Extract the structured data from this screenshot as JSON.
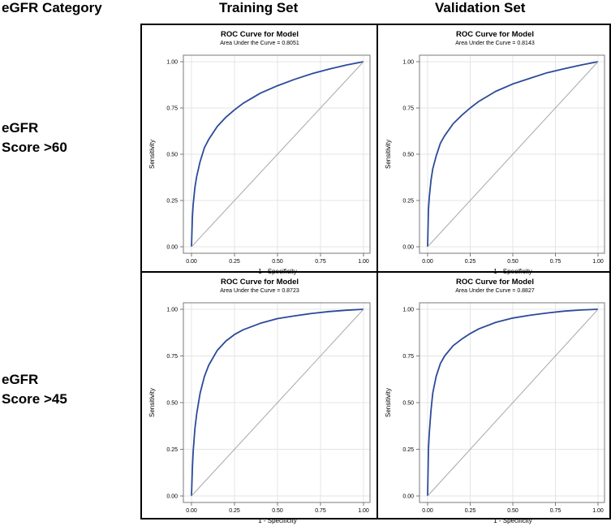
{
  "headers": {
    "category": "eGFR Category",
    "training": "Training Set",
    "validation": "Validation Set"
  },
  "rows": [
    {
      "line1": "eGFR",
      "line2": "Score >60"
    },
    {
      "line1": "eGFR",
      "line2": "Score >45"
    }
  ],
  "colors": {
    "curve": "#2b4a9a",
    "diagonal": "#a8a8a8",
    "grid": "#e4e4e4",
    "frame": "#7a7a7a"
  },
  "chart_data": [
    {
      "type": "line",
      "panel": "training-egfr-60",
      "title": "ROC Curve for Model",
      "subtitle": "Area Under the Curve = 0.8051",
      "xlabel": "1 - Specificity",
      "ylabel": "Sensitivity",
      "xlim": [
        0,
        1
      ],
      "ylim": [
        0,
        1
      ],
      "xticks": [
        "0.00",
        "0.25",
        "0.50",
        "0.75",
        "1.00"
      ],
      "yticks": [
        "0.00",
        "0.25",
        "0.50",
        "0.75",
        "1.00"
      ],
      "grid": true,
      "series": [
        {
          "name": "ROC",
          "x": [
            0,
            0.005,
            0.01,
            0.02,
            0.03,
            0.05,
            0.075,
            0.1,
            0.15,
            0.2,
            0.25,
            0.3,
            0.4,
            0.5,
            0.6,
            0.7,
            0.8,
            0.9,
            1.0
          ],
          "y": [
            0,
            0.16,
            0.23,
            0.32,
            0.38,
            0.46,
            0.535,
            0.58,
            0.65,
            0.7,
            0.74,
            0.775,
            0.83,
            0.87,
            0.905,
            0.935,
            0.96,
            0.982,
            1.0
          ]
        },
        {
          "name": "Reference",
          "x": [
            0,
            1
          ],
          "y": [
            0,
            1
          ]
        }
      ]
    },
    {
      "type": "line",
      "panel": "validation-egfr-60",
      "title": "ROC Curve for Model",
      "subtitle": "Area Under the Curve = 0.8143",
      "xlabel": "1 - Specificity",
      "ylabel": "Sensitivity",
      "xlim": [
        0,
        1
      ],
      "ylim": [
        0,
        1
      ],
      "xticks": [
        "0.00",
        "0.25",
        "0.50",
        "0.75",
        "1.00"
      ],
      "yticks": [
        "0.00",
        "0.25",
        "0.50",
        "0.75",
        "1.00"
      ],
      "grid": true,
      "series": [
        {
          "name": "ROC",
          "x": [
            0,
            0.005,
            0.01,
            0.02,
            0.03,
            0.05,
            0.075,
            0.1,
            0.15,
            0.2,
            0.25,
            0.3,
            0.4,
            0.5,
            0.6,
            0.7,
            0.8,
            0.9,
            1.0
          ],
          "y": [
            0,
            0.2,
            0.27,
            0.36,
            0.42,
            0.49,
            0.56,
            0.6,
            0.665,
            0.71,
            0.75,
            0.785,
            0.84,
            0.88,
            0.91,
            0.94,
            0.962,
            0.982,
            1.0
          ]
        },
        {
          "name": "Reference",
          "x": [
            0,
            1
          ],
          "y": [
            0,
            1
          ]
        }
      ]
    },
    {
      "type": "line",
      "panel": "training-egfr-45",
      "title": "ROC Curve for Model",
      "subtitle": "Area Under the Curve = 0.8723",
      "xlabel": "1 - Specificity",
      "ylabel": "Sensitivity",
      "xlim": [
        0,
        1
      ],
      "ylim": [
        0,
        1
      ],
      "xticks": [
        "0.00",
        "0.25",
        "0.50",
        "0.75",
        "1.00"
      ],
      "yticks": [
        "0.00",
        "0.25",
        "0.50",
        "0.75",
        "1.00"
      ],
      "grid": true,
      "series": [
        {
          "name": "ROC",
          "x": [
            0,
            0.005,
            0.01,
            0.02,
            0.03,
            0.05,
            0.075,
            0.1,
            0.15,
            0.2,
            0.25,
            0.3,
            0.4,
            0.5,
            0.6,
            0.7,
            0.8,
            0.9,
            1.0
          ],
          "y": [
            0,
            0.15,
            0.24,
            0.36,
            0.44,
            0.55,
            0.64,
            0.7,
            0.78,
            0.83,
            0.865,
            0.89,
            0.925,
            0.95,
            0.965,
            0.978,
            0.988,
            0.995,
            1.0
          ]
        },
        {
          "name": "Reference",
          "x": [
            0,
            1
          ],
          "y": [
            0,
            1
          ]
        }
      ]
    },
    {
      "type": "line",
      "panel": "validation-egfr-45",
      "title": "ROC Curve for Model",
      "subtitle": "Area Under the Curve = 0.8827",
      "xlabel": "1 - Specificity",
      "ylabel": "Sensitivity",
      "xlim": [
        0,
        1
      ],
      "ylim": [
        0,
        1
      ],
      "xticks": [
        "0.00",
        "0.25",
        "0.50",
        "0.75",
        "1.00"
      ],
      "yticks": [
        "0.00",
        "0.25",
        "0.50",
        "0.75",
        "1.00"
      ],
      "grid": true,
      "series": [
        {
          "name": "ROC",
          "x": [
            0,
            0.005,
            0.01,
            0.02,
            0.03,
            0.05,
            0.075,
            0.1,
            0.15,
            0.2,
            0.25,
            0.3,
            0.4,
            0.5,
            0.6,
            0.7,
            0.8,
            0.9,
            1.0
          ],
          "y": [
            0,
            0.25,
            0.34,
            0.46,
            0.55,
            0.64,
            0.71,
            0.75,
            0.805,
            0.84,
            0.87,
            0.895,
            0.93,
            0.953,
            0.968,
            0.98,
            0.99,
            0.996,
            1.0
          ]
        },
        {
          "name": "Reference",
          "x": [
            0,
            1
          ],
          "y": [
            0,
            1
          ]
        }
      ]
    }
  ]
}
